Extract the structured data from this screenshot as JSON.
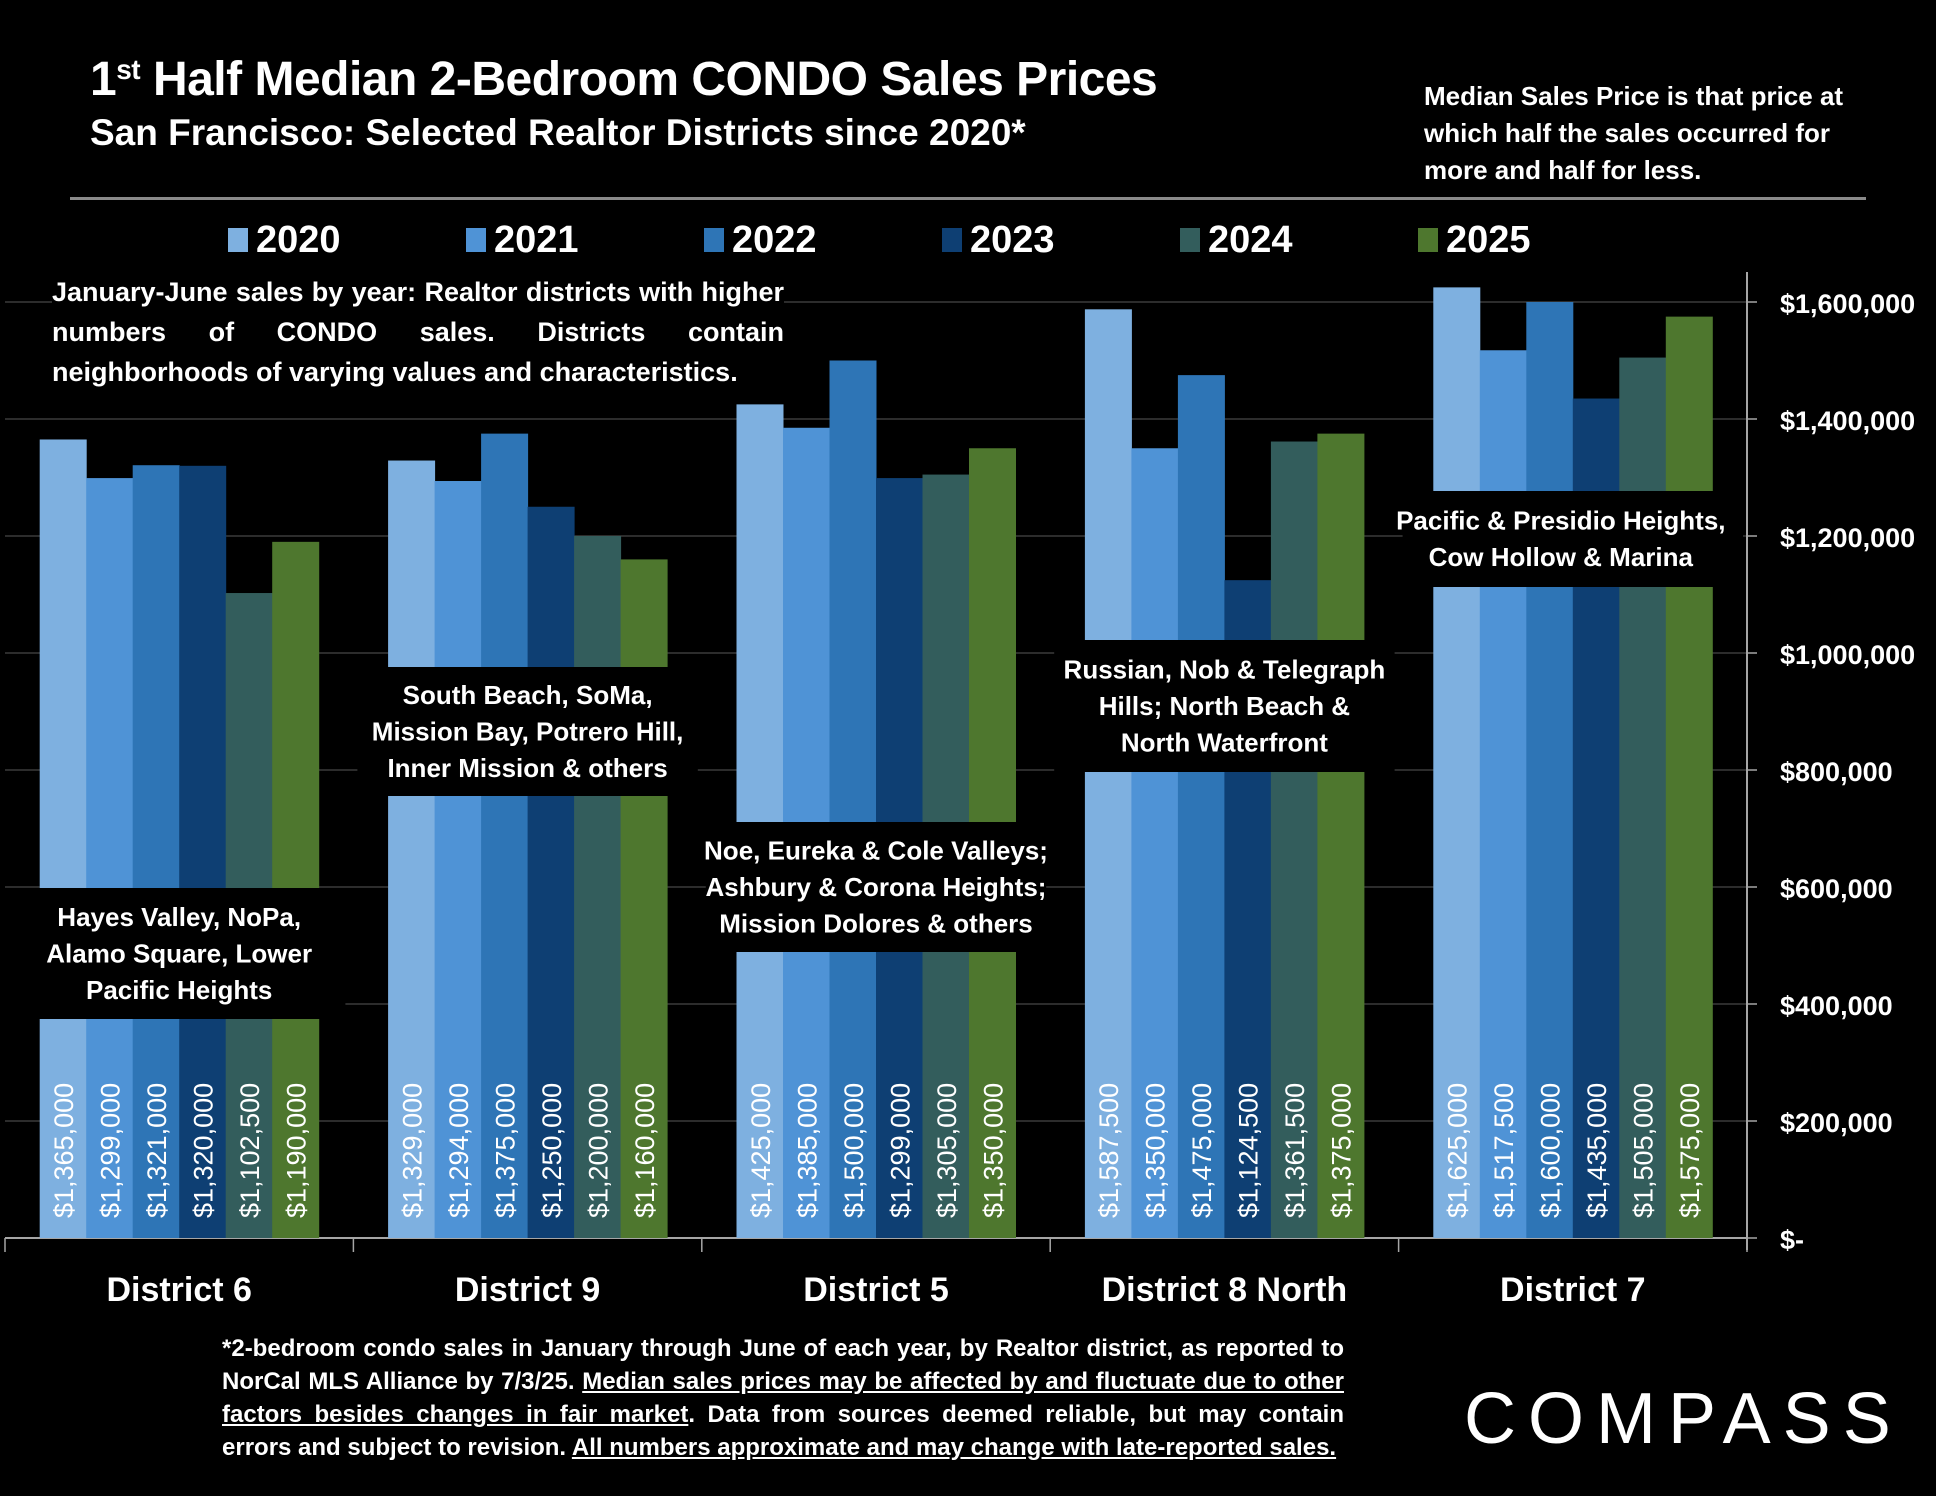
{
  "header": {
    "title_prefix": "1",
    "title_sup": "st",
    "title_rest": " Half Median 2-Bedroom CONDO Sales Prices",
    "subtitle": "San Francisco: Selected Realtor Districts since 2020*",
    "definition": "Median Sales Price is that price at which half the sales occurred for more and half for less."
  },
  "intro_text": "January-June sales by year: Realtor districts with higher numbers of CONDO sales. Districts contain neighborhoods of varying values and characteristics.",
  "footer": {
    "part1": "*2-bedroom condo sales in January through June of each year, by Realtor district, as reported to NorCal MLS Alliance by 7/3/25. ",
    "part2_underlined": "Median sales prices may be affected by and fluctuate due to other factors besides changes in fair market",
    "part3": ". Data from sources deemed reliable, but may contain errors and subject to revision. ",
    "part4_underlined": "All numbers approximate and may change with late-reported sales."
  },
  "logo": "COMPASS",
  "colors": {
    "2020": "#7eb0e0",
    "2021": "#4f93d6",
    "2022": "#2e75b6",
    "2023": "#0e3f73",
    "2024": "#335d5c",
    "2025": "#4e772e",
    "background": "#000000",
    "gridline": "#3a3a3a",
    "axis": "#a6a6a6"
  },
  "chart_data": {
    "type": "bar",
    "title": "1st Half Median 2-Bedroom CONDO Sales Prices",
    "subtitle": "San Francisco: Selected Realtor Districts since 2020*",
    "xlabel": "",
    "ylabel": "",
    "ylim": [
      0,
      1600000
    ],
    "yticks": [
      0,
      200000,
      400000,
      600000,
      800000,
      1000000,
      1200000,
      1400000,
      1600000
    ],
    "ytick_labels": [
      "$-",
      "$200,000",
      "$400,000",
      "$600,000",
      "$800,000",
      "$1,000,000",
      "$1,200,000",
      "$1,400,000",
      "$1,600,000"
    ],
    "y_axis_side": "right",
    "grid": true,
    "legend_position": "top",
    "categories": [
      "District 6",
      "District 9",
      "District 5",
      "District 8 North",
      "District 7"
    ],
    "category_notes": [
      "Hayes Valley, NoPa, Alamo Square, Lower Pacific Heights",
      "South Beach, SoMa, Mission Bay, Potrero Hill, Inner Mission & others",
      "Noe, Eureka & Cole Valleys; Ashbury & Corona Heights; Mission Dolores & others",
      "Russian, Nob & Telegraph Hills; North Beach & North Waterfront",
      "Pacific & Presidio Heights, Cow Hollow & Marina"
    ],
    "category_note_lines": [
      [
        "Hayes Valley, NoPa,",
        "Alamo Square, Lower",
        "Pacific Heights"
      ],
      [
        "South Beach, SoMa,",
        "Mission Bay, Potrero Hill,",
        "Inner Mission & others"
      ],
      [
        "Noe, Eureka & Cole Valleys;",
        "Ashbury & Corona Heights;",
        "Mission Dolores & others"
      ],
      [
        "Russian, Nob & Telegraph",
        "Hills; North Beach &",
        "North Waterfront"
      ],
      [
        "Pacific & Presidio Heights,",
        "Cow Hollow & Marina"
      ]
    ],
    "series": [
      {
        "name": "2020",
        "values": [
          1365000,
          1329000,
          1425000,
          1587500,
          1625000
        ],
        "labels": [
          "$1,365,000",
          "$1,329,000",
          "$1,425,000",
          "$1,587,500",
          "$1,625,000"
        ]
      },
      {
        "name": "2021",
        "values": [
          1299000,
          1294000,
          1385000,
          1350000,
          1517500
        ],
        "labels": [
          "$1,299,000",
          "$1,294,000",
          "$1,385,000",
          "$1,350,000",
          "$1,517,500"
        ]
      },
      {
        "name": "2022",
        "values": [
          1321000,
          1375000,
          1500000,
          1475000,
          1600000
        ],
        "labels": [
          "$1,321,000",
          "$1,375,000",
          "$1,500,000",
          "$1,475,000",
          "$1,600,000"
        ]
      },
      {
        "name": "2023",
        "values": [
          1320000,
          1250000,
          1299000,
          1124500,
          1435000
        ],
        "labels": [
          "$1,320,000",
          "$1,250,000",
          "$1,299,000",
          "$1,124,500",
          "$1,435,000"
        ]
      },
      {
        "name": "2024",
        "values": [
          1102500,
          1200000,
          1305000,
          1361500,
          1505000
        ],
        "labels": [
          "$1,102,500",
          "$1,200,000",
          "$1,305,000",
          "$1,361,500",
          "$1,505,000"
        ]
      },
      {
        "name": "2025",
        "values": [
          1190000,
          1160000,
          1350000,
          1375000,
          1575000
        ],
        "labels": [
          "$1,190,000",
          "$1,160,000",
          "$1,350,000",
          "$1,375,000",
          "$1,575,000"
        ]
      }
    ]
  }
}
